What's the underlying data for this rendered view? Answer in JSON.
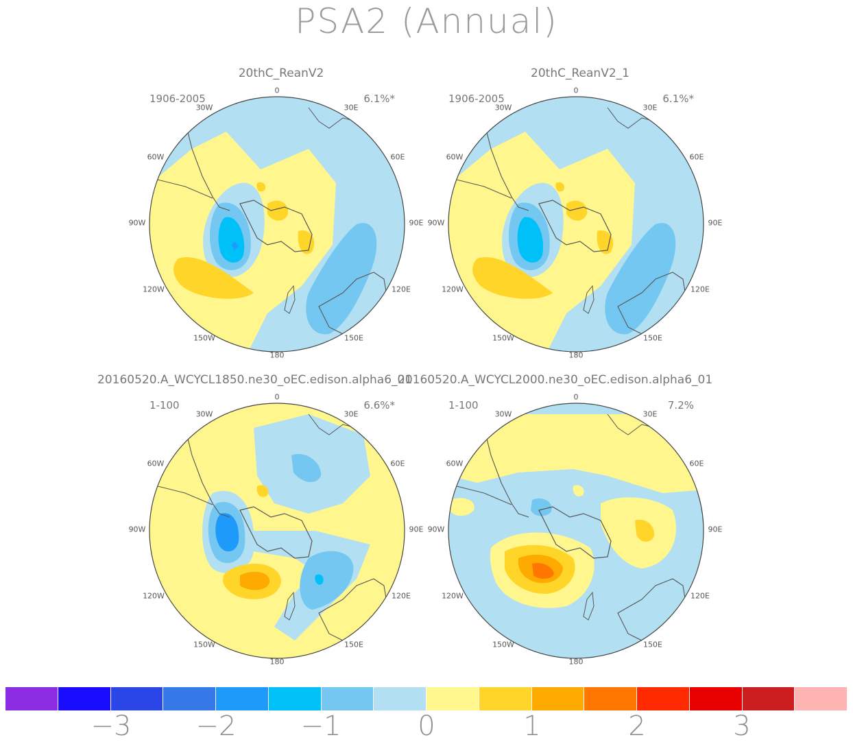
{
  "title": "PSA2 (Annual)",
  "lon_labels": [
    "0",
    "30E",
    "60E",
    "90E",
    "120E",
    "150E",
    "180",
    "150W",
    "120W",
    "90W",
    "60W",
    "30W"
  ],
  "panels": [
    {
      "title": "20thC_ReanV2",
      "years": "1906-2005",
      "pct": "6.1%*"
    },
    {
      "title": "20thC_ReanV2_1",
      "years": "1906-2005",
      "pct": "6.1%*"
    },
    {
      "title": "20160520.A_WCYCL1850.ne30_oEC.edison.alpha6_01",
      "years": "1-100",
      "pct": "6.6%*"
    },
    {
      "title": "20160520.A_WCYCL2000.ne30_oEC.edison.alpha6_01",
      "years": "1-100",
      "pct": "7.2%"
    }
  ],
  "colorbar": {
    "colors": [
      "#8b2be2",
      "#1a0dff",
      "#2b46e6",
      "#3579e8",
      "#1e9bfa",
      "#00c0f8",
      "#74c7f0",
      "#b2dff2",
      "#fff78e",
      "#ffd52a",
      "#ffaa00",
      "#ff7700",
      "#ff2a00",
      "#e60000",
      "#cc1e1e",
      "#ffb4b4"
    ],
    "labels": [
      "-3",
      "-2",
      "-1",
      "0",
      "1",
      "2",
      "3"
    ]
  },
  "palette": {
    "light_blue": "#b2dff2",
    "blue1": "#74c7f0",
    "blue2": "#00c0f8",
    "blue3": "#1e9bfa",
    "yellow": "#fff78e",
    "gold": "#ffd52a",
    "orange": "#ffaa00",
    "orange2": "#ff7700",
    "coast": "#555555"
  }
}
